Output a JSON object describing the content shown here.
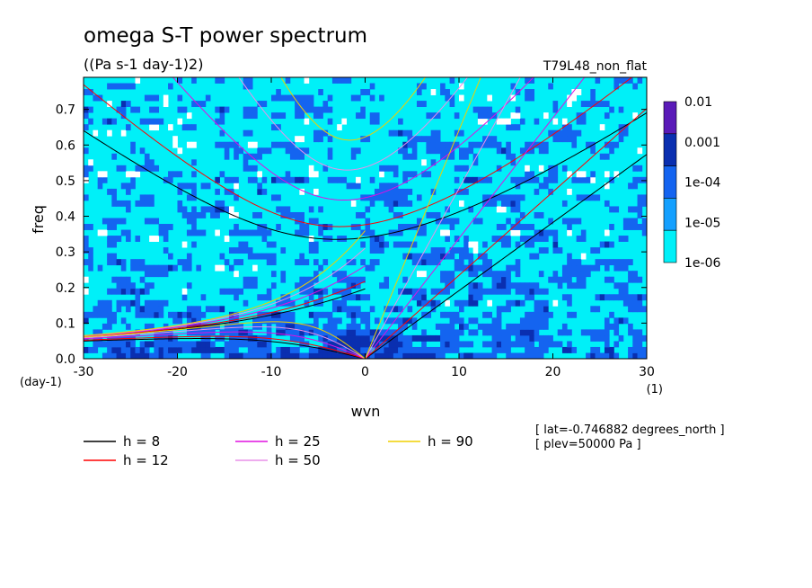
{
  "chart_data": {
    "type": "heatmap",
    "title": "omega S-T power spectrum",
    "subtitle": "((Pa s-1 day-1)2)",
    "run_label": "T79L48_non_flat",
    "xlabel": "wvn",
    "ylabel": "freq",
    "x_unit": "(1)",
    "y_unit": "(day-1)",
    "xlim": [
      -30,
      30
    ],
    "ylim": [
      0,
      0.79
    ],
    "x_ticks": [
      -30,
      -20,
      -10,
      0,
      10,
      20,
      30
    ],
    "x_tick_labels": [
      "-30",
      "-20",
      "-10",
      "0",
      "10",
      "20",
      "30"
    ],
    "y_ticks": [
      0,
      0.1,
      0.2,
      0.3,
      0.4,
      0.5,
      0.6,
      0.7
    ],
    "y_tick_labels": [
      "0.0",
      "0.1",
      "0.2",
      "0.3",
      "0.4",
      "0.5",
      "0.6",
      "0.7"
    ],
    "colorbar": {
      "levels": [
        "0.01",
        "0.001",
        "1e-04",
        "1e-05",
        "1e-06"
      ],
      "colors": [
        "#5a1ab8",
        "#0a2fb0",
        "#1464f0",
        "#14a0ff",
        "#00f0f8"
      ]
    },
    "field_colors": {
      "below": "#ffffff",
      "low": "#00f0f8",
      "mid": "#14a0ff",
      "high": "#1464f0",
      "peak": "#0a2fb0"
    },
    "dispersion_curves": [
      {
        "label": "h =  8",
        "h": 8,
        "color": "#000000"
      },
      {
        "label": "h = 12",
        "h": 12,
        "color": "#ff0000"
      },
      {
        "label": "h = 25",
        "h": 25,
        "color": "#e010e0"
      },
      {
        "label": "h = 50",
        "h": 50,
        "color": "#e890e8"
      },
      {
        "label": "h = 90",
        "h": 90,
        "color": "#f0d000"
      }
    ],
    "annotations": [
      "[ lat=-0.746882 degrees_north ]",
      "[ plev=50000 Pa ]"
    ]
  }
}
